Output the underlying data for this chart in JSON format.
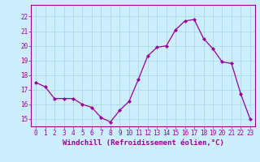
{
  "x": [
    0,
    1,
    2,
    3,
    4,
    5,
    6,
    7,
    8,
    9,
    10,
    11,
    12,
    13,
    14,
    15,
    16,
    17,
    18,
    19,
    20,
    21,
    22,
    23
  ],
  "y": [
    17.5,
    17.2,
    16.4,
    16.4,
    16.4,
    16.0,
    15.8,
    15.1,
    14.8,
    15.6,
    16.2,
    17.7,
    19.3,
    19.9,
    20.0,
    21.1,
    21.7,
    21.8,
    20.5,
    19.8,
    18.9,
    18.8,
    16.7,
    15.0
  ],
  "line_color": "#990099",
  "marker": "D",
  "marker_size": 2.0,
  "bg_color": "#cceeff",
  "grid_color": "#aadddd",
  "xlabel": "Windchill (Refroidissement éolien,°C)",
  "ylabel_ticks": [
    15,
    16,
    17,
    18,
    19,
    20,
    21,
    22
  ],
  "xtick_labels": [
    "0",
    "1",
    "2",
    "3",
    "4",
    "5",
    "6",
    "7",
    "8",
    "9",
    "10",
    "11",
    "12",
    "13",
    "14",
    "15",
    "16",
    "17",
    "18",
    "19",
    "20",
    "21",
    "22",
    "23"
  ],
  "xticks": [
    0,
    1,
    2,
    3,
    4,
    5,
    6,
    7,
    8,
    9,
    10,
    11,
    12,
    13,
    14,
    15,
    16,
    17,
    18,
    19,
    20,
    21,
    22,
    23
  ],
  "ylim": [
    14.5,
    22.8
  ],
  "xlim": [
    -0.5,
    23.5
  ],
  "tick_color": "#990099",
  "label_color": "#990099",
  "label_fontsize": 6.5,
  "tick_fontsize": 5.5,
  "spine_color": "#990099"
}
